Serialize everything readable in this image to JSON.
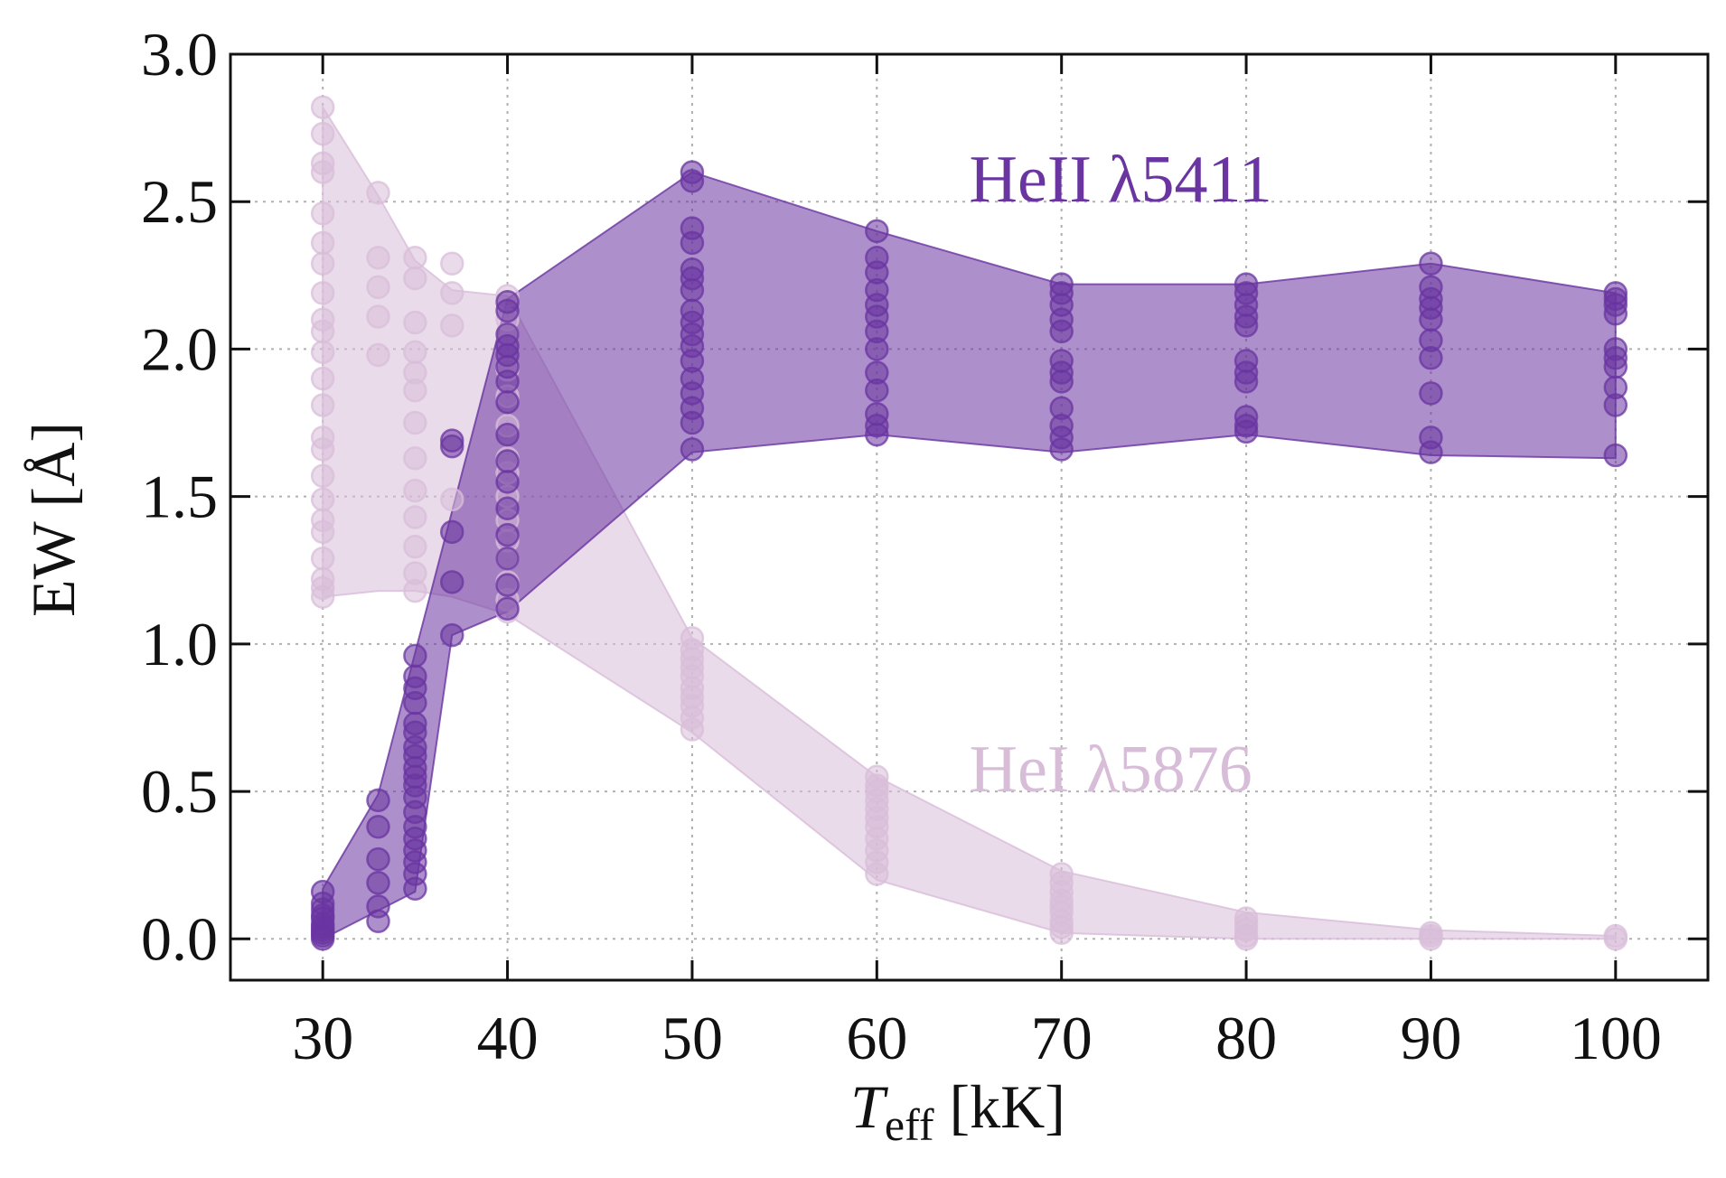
{
  "chart_data": {
    "type": "scatter",
    "title": "",
    "xlabel_main": "T",
    "xlabel_sub": "eff",
    "xlabel_unit": " [kK]",
    "ylabel": "EW [Å]",
    "xlim": [
      25,
      105
    ],
    "ylim": [
      -0.14,
      3.0
    ],
    "grid": true,
    "x_ticks": [
      30,
      40,
      50,
      60,
      70,
      80,
      90,
      100
    ],
    "y_ticks": [
      0.0,
      0.5,
      1.0,
      1.5,
      2.0,
      2.5,
      3.0
    ],
    "x_tick_labels": [
      "30",
      "40",
      "50",
      "60",
      "70",
      "80",
      "90",
      "100"
    ],
    "y_tick_labels": [
      "0.0",
      "0.5",
      "1.0",
      "1.5",
      "2.0",
      "2.5",
      "3.0"
    ],
    "series": [
      {
        "name": "HeI λ5876",
        "label_text": "HeI λ5876",
        "label_pos": [
          65,
          0.5
        ],
        "color": "#d8bdd9",
        "band_upper": [
          [
            30,
            2.82
          ],
          [
            33,
            2.52
          ],
          [
            35,
            2.3
          ],
          [
            37,
            2.2
          ],
          [
            40,
            2.18
          ],
          [
            50,
            1.02
          ],
          [
            60,
            0.55
          ],
          [
            70,
            0.23
          ],
          [
            80,
            0.09
          ],
          [
            90,
            0.03
          ],
          [
            100,
            0.01
          ]
        ],
        "band_lower": [
          [
            30,
            1.16
          ],
          [
            33,
            1.18
          ],
          [
            35,
            1.18
          ],
          [
            37,
            1.16
          ],
          [
            40,
            1.1
          ],
          [
            50,
            0.7
          ],
          [
            60,
            0.2
          ],
          [
            70,
            0.02
          ],
          [
            80,
            0.0
          ],
          [
            90,
            0.0
          ],
          [
            100,
            0.0
          ]
        ],
        "points": {
          "30": [
            2.82,
            2.73,
            2.63,
            2.6,
            2.46,
            2.36,
            2.29,
            2.19,
            2.1,
            2.06,
            1.99,
            1.9,
            1.81,
            1.7,
            1.66,
            1.57,
            1.49,
            1.42,
            1.38,
            1.29,
            1.22,
            1.19,
            1.16
          ],
          "33": [
            2.53,
            2.31,
            2.21,
            2.11,
            1.98
          ],
          "35": [
            2.31,
            2.24,
            2.09,
            1.99,
            1.92,
            1.86,
            1.75,
            1.63,
            1.52,
            1.43,
            1.33,
            1.24,
            1.18
          ],
          "37": [
            2.29,
            2.19,
            2.08,
            1.49
          ],
          "40": [
            2.18,
            2.1,
            2.05,
            1.93,
            1.84,
            1.74,
            1.63,
            1.58,
            1.5,
            1.42,
            1.35,
            1.29,
            1.21,
            1.15,
            1.11
          ],
          "50": [
            1.02,
            0.98,
            0.95,
            0.92,
            0.89,
            0.85,
            0.82,
            0.79,
            0.75,
            0.71
          ],
          "60": [
            0.55,
            0.52,
            0.5,
            0.47,
            0.44,
            0.41,
            0.38,
            0.34,
            0.3,
            0.26,
            0.22
          ],
          "70": [
            0.22,
            0.19,
            0.16,
            0.13,
            0.11,
            0.09,
            0.06,
            0.04,
            0.02
          ],
          "80": [
            0.07,
            0.05,
            0.03,
            0.01,
            0.0
          ],
          "90": [
            0.02,
            0.01,
            0.0
          ],
          "100": [
            0.01,
            0.0
          ]
        }
      },
      {
        "name": "HeII λ5411",
        "label_text": "HeII λ5411",
        "label_pos": [
          65,
          2.5
        ],
        "color": "#6a34a1",
        "band_upper": [
          [
            30,
            0.17
          ],
          [
            33,
            0.49
          ],
          [
            35,
            0.97
          ],
          [
            40,
            2.17
          ],
          [
            50,
            2.6
          ],
          [
            60,
            2.4
          ],
          [
            70,
            2.22
          ],
          [
            80,
            2.22
          ],
          [
            90,
            2.29
          ],
          [
            100,
            2.19
          ]
        ],
        "band_lower": [
          [
            30,
            0.0
          ],
          [
            35,
            0.16
          ],
          [
            37,
            1.03
          ],
          [
            40,
            1.11
          ],
          [
            50,
            1.65
          ],
          [
            60,
            1.71
          ],
          [
            70,
            1.65
          ],
          [
            80,
            1.71
          ],
          [
            90,
            1.64
          ],
          [
            100,
            1.63
          ]
        ],
        "points": {
          "30": [
            0.16,
            0.12,
            0.1,
            0.08,
            0.07,
            0.05,
            0.04,
            0.03,
            0.02,
            0.01,
            0.0
          ],
          "33": [
            0.47,
            0.38,
            0.27,
            0.19,
            0.11,
            0.06
          ],
          "35": [
            0.96,
            0.89,
            0.85,
            0.8,
            0.73,
            0.7,
            0.65,
            0.62,
            0.58,
            0.55,
            0.52,
            0.48,
            0.43,
            0.38,
            0.34,
            0.3,
            0.26,
            0.22,
            0.17
          ],
          "37": [
            1.69,
            1.67,
            1.38,
            1.21,
            1.03
          ],
          "40": [
            2.16,
            2.13,
            2.05,
            2.01,
            1.98,
            1.94,
            1.89,
            1.82,
            1.71,
            1.62,
            1.55,
            1.46,
            1.37,
            1.29,
            1.2,
            1.12
          ],
          "50": [
            2.6,
            2.57,
            2.41,
            2.36,
            2.27,
            2.24,
            2.2,
            2.13,
            2.09,
            2.05,
            2.01,
            1.96,
            1.9,
            1.85,
            1.8,
            1.75,
            1.66
          ],
          "60": [
            2.4,
            2.31,
            2.26,
            2.2,
            2.15,
            2.11,
            2.06,
            2.0,
            1.92,
            1.86,
            1.78,
            1.74,
            1.71
          ],
          "70": [
            2.22,
            2.19,
            2.15,
            2.1,
            2.06,
            1.96,
            1.92,
            1.89,
            1.8,
            1.74,
            1.7,
            1.66
          ],
          "80": [
            2.22,
            2.19,
            2.15,
            2.11,
            2.08,
            1.96,
            1.92,
            1.89,
            1.77,
            1.74,
            1.72
          ],
          "90": [
            2.29,
            2.21,
            2.17,
            2.14,
            2.1,
            2.03,
            1.97,
            1.85,
            1.7,
            1.65
          ],
          "100": [
            2.19,
            2.17,
            2.15,
            2.12,
            2.0,
            1.97,
            1.94,
            1.87,
            1.81,
            1.64
          ]
        }
      }
    ]
  }
}
